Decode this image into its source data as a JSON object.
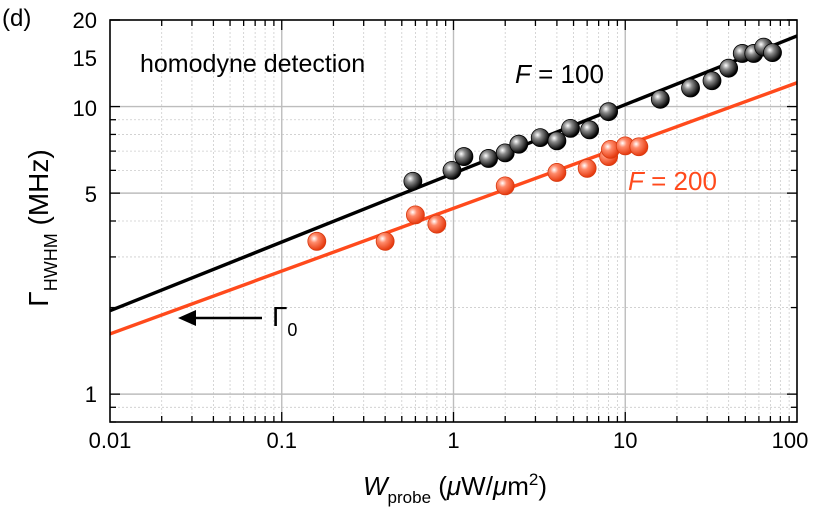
{
  "chart_data": {
    "type": "scatter",
    "panel_label": "(d)",
    "annotation": "homodyne detection",
    "xscale": "log",
    "yscale": "log",
    "xlim": [
      0.01,
      100
    ],
    "ylim": [
      0.8,
      20
    ],
    "x_ticks": [
      0.01,
      0.1,
      1,
      10,
      100
    ],
    "x_tick_labels": [
      "0.01",
      "0.1",
      "1",
      "10",
      "100"
    ],
    "y_ticks": [
      1,
      5,
      10,
      15,
      20
    ],
    "y_tick_labels": [
      "1",
      "5",
      "10",
      "15",
      "20"
    ],
    "xlabel": {
      "main": "W",
      "sub": "probe",
      "units_open": " (",
      "mu1": "μ",
      "w": "W/",
      "mu2": "μ",
      "m": "m",
      "sup": "2",
      "units_close": ")"
    },
    "ylabel": {
      "main": "Γ",
      "sub": "HWHM",
      "units": " (MHz)"
    },
    "gamma0": {
      "symbol": "Γ",
      "sub": "0",
      "value": 1.75
    },
    "series": [
      {
        "name": "F = 100",
        "label_italic": "F",
        "label_rest": " = 100",
        "color": "#000000",
        "marker_fill": "#2a2a2a",
        "points": [
          {
            "x": 0.58,
            "y": 5.5
          },
          {
            "x": 0.98,
            "y": 6.0
          },
          {
            "x": 1.15,
            "y": 6.7
          },
          {
            "x": 1.6,
            "y": 6.6
          },
          {
            "x": 2.0,
            "y": 6.9
          },
          {
            "x": 2.4,
            "y": 7.4
          },
          {
            "x": 3.2,
            "y": 7.8
          },
          {
            "x": 4.0,
            "y": 7.6
          },
          {
            "x": 4.8,
            "y": 8.4
          },
          {
            "x": 6.2,
            "y": 8.3
          },
          {
            "x": 8.0,
            "y": 9.6
          },
          {
            "x": 16.0,
            "y": 10.6
          },
          {
            "x": 24.0,
            "y": 11.6
          },
          {
            "x": 32.0,
            "y": 12.3
          },
          {
            "x": 40.0,
            "y": 13.6
          },
          {
            "x": 48.0,
            "y": 15.3
          },
          {
            "x": 56.0,
            "y": 15.3
          },
          {
            "x": 64.0,
            "y": 16.1
          },
          {
            "x": 72.0,
            "y": 15.4
          }
        ],
        "fit": {
          "x": [
            0.01,
            100
          ],
          "y": [
            1.95,
            17.6
          ]
        }
      },
      {
        "name": "F = 200",
        "label_italic": "F",
        "label_rest": " = 200",
        "color": "#ff4a1c",
        "marker_fill": "#ff4a1c",
        "points": [
          {
            "x": 0.16,
            "y": 3.4
          },
          {
            "x": 0.4,
            "y": 3.4
          },
          {
            "x": 0.6,
            "y": 4.2
          },
          {
            "x": 0.8,
            "y": 3.9
          },
          {
            "x": 2.0,
            "y": 5.3
          },
          {
            "x": 4.0,
            "y": 5.9
          },
          {
            "x": 6.0,
            "y": 6.1
          },
          {
            "x": 8.0,
            "y": 6.7
          },
          {
            "x": 8.2,
            "y": 7.1
          },
          {
            "x": 10.0,
            "y": 7.3
          },
          {
            "x": 12.0,
            "y": 7.25
          }
        ],
        "fit": {
          "x": [
            0.01,
            100
          ],
          "y": [
            1.62,
            12.1
          ]
        }
      }
    ]
  }
}
